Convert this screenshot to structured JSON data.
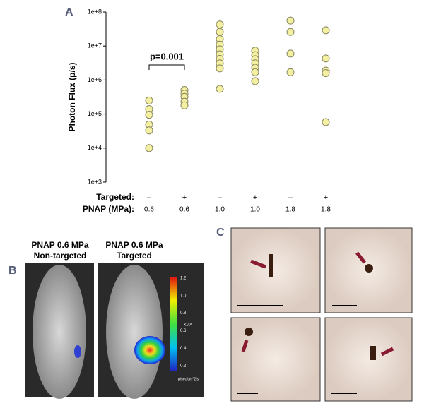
{
  "chart_data": {
    "type": "scatter",
    "panel_label": "A",
    "y_label": "Photon Flux (p/s)",
    "log_y": true,
    "ylim": [
      1000,
      100000000
    ],
    "yticks": [
      {
        "value": 1000,
        "label": "1e+3"
      },
      {
        "value": 10000,
        "label": "1e+4"
      },
      {
        "value": 100000,
        "label": "1e+5"
      },
      {
        "value": 1000000,
        "label": "1e+6"
      },
      {
        "value": 10000000,
        "label": "1e+7"
      },
      {
        "value": 100000000,
        "label": "1e+8"
      }
    ],
    "color": "#f4f0a2",
    "row_labels": [
      "Targeted:",
      "PNAP (MPa):"
    ],
    "groups": [
      {
        "targeted": "–",
        "pnap": "0.6",
        "values": [
          250000,
          140000,
          95000,
          49000,
          33000,
          10000
        ]
      },
      {
        "targeted": "+",
        "pnap": "0.6",
        "values": [
          510000,
          400000,
          320000,
          230000,
          180000
        ]
      },
      {
        "targeted": "–",
        "pnap": "1.0",
        "values": [
          43000000,
          26000000,
          16000000,
          11000000,
          8000000,
          5700000,
          4200000,
          3100000,
          2200000,
          550000
        ]
      },
      {
        "targeted": "+",
        "pnap": "1.0",
        "values": [
          7300000,
          5400000,
          4100000,
          3100000,
          2300000,
          1700000,
          930000
        ]
      },
      {
        "targeted": "–",
        "pnap": "1.8",
        "values": [
          56000000,
          26000000,
          6000000,
          1700000
        ]
      },
      {
        "targeted": "+",
        "pnap": "1.8",
        "values": [
          29000000,
          4300000,
          1900000,
          1600000,
          58000
        ]
      }
    ],
    "annotation": "p=0.001"
  },
  "panel_b": {
    "label": "B",
    "left_title": [
      "PNAP 0.6 MPa",
      "Non-targeted"
    ],
    "right_title": [
      "PNAP 0.6 MPa",
      "Targeted"
    ],
    "colorbar_ticks": [
      "1.2",
      "1.0",
      "0.8",
      "0.6",
      "0.4",
      "0.2"
    ],
    "colorbar_scale": "x10⁶",
    "colorbar_unit": "p/sec/cm^2/sr"
  },
  "panel_c": {
    "label": "C"
  }
}
